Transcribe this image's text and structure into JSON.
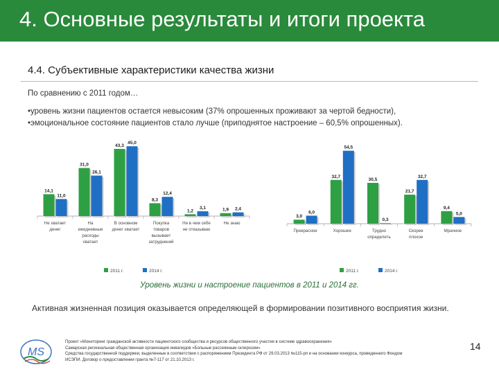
{
  "header": {
    "title": "4. Основные результаты и итоги проекта"
  },
  "section": {
    "subtitle": "4.4. Субъективные характеристики качества жизни",
    "intro": "По сравнению с 2011 годом…",
    "bullets": [
      "•уровень жизни пациентов остается невысоким (37% опрошенных проживают за чертой бедности),",
      "•эмоциональное состояние пациентов стало лучше (приподнятое настроение – 60,5% опрошенных)."
    ]
  },
  "colors": {
    "header": "#2a8a3b",
    "series2011": "#2ea043",
    "series2014": "#1f6fc4"
  },
  "chart_data": [
    {
      "type": "bar",
      "title": "Уровень жизни",
      "categories": [
        [
          "Не хватает",
          "денег"
        ],
        [
          "На",
          "ежедневные",
          "расходы",
          "хватает"
        ],
        [
          "В основном",
          "денег хватает"
        ],
        [
          "Покупка",
          "товаров",
          "вызывает",
          "затруднений"
        ],
        [
          "Ни в чем себе",
          "не отказываю"
        ],
        [
          "Не знаю"
        ]
      ],
      "series": [
        {
          "name": "2011 г.",
          "values": [
            14.1,
            31.0,
            43.3,
            8.3,
            1.2,
            1.9
          ],
          "labels": [
            "14,1",
            "31,0",
            "43,3",
            "8,3",
            "1,2",
            "1,9"
          ]
        },
        {
          "name": "2014 г.",
          "values": [
            11.0,
            26.1,
            45.0,
            12.4,
            3.1,
            2.4
          ],
          "labels": [
            "11,0",
            "26,1",
            "45,0",
            "12,4",
            "3,1",
            "2,4"
          ]
        }
      ],
      "ylim": [
        0,
        50
      ]
    },
    {
      "type": "bar",
      "title": "Настроение",
      "categories": [
        [
          "Прекрасное"
        ],
        [
          "Хорошее"
        ],
        [
          "Трудно",
          "определить"
        ],
        [
          "Скорее",
          "плохое"
        ],
        [
          "Мрачное"
        ]
      ],
      "series": [
        {
          "name": "2011 г.",
          "values": [
            3.0,
            32.7,
            30.5,
            21.7,
            9.4
          ],
          "labels": [
            "3,0",
            "32,7",
            "30,5",
            "21,7",
            "9,4"
          ]
        },
        {
          "name": "2014 г.",
          "values": [
            6.0,
            54.5,
            0.3,
            32.7,
            5.0
          ],
          "labels": [
            "6,0",
            "54,5",
            "0,3",
            "32,7",
            "5,0"
          ]
        }
      ],
      "ylim": [
        0,
        60
      ]
    }
  ],
  "chart_caption": "Уровень жизни и настроение пациентов в 2011 и 2014 гг.",
  "conclusion": "Активная жизненная позиция оказывается определяющей в формировании позитивного восприятия жизни.",
  "footer": {
    "logo_text": "MS",
    "lines": [
      "Проект «Мониторинг гражданской активности пациентского сообщества и ресурсов общественного участия в системе здравоохранения»",
      "Самарская региональная общественная организация инвалидов «Больные рассеянным склерозом»",
      "Средства государственной поддержки, выделенные в соответствии с распоряжением Президента РФ от 29.03.2013 №115-рп и на основании конкурса, проведенного Фондом",
      "ИСЭПИ. Договор о предоставлении гранта №7-117 от 21.10.2013 г."
    ],
    "page_number": "14"
  }
}
